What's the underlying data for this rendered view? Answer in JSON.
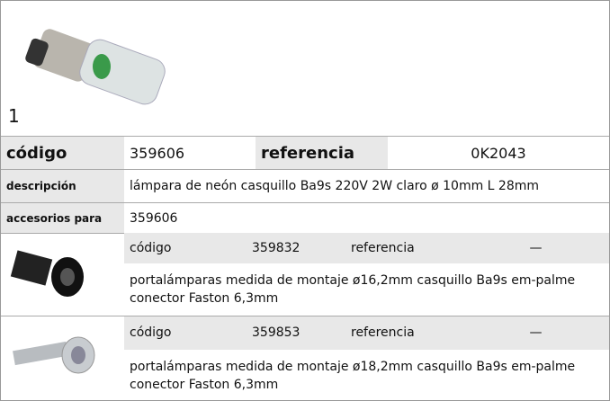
{
  "product": {
    "number": "1",
    "code_label": "código",
    "code": "359606",
    "ref_label": "referencia",
    "ref": "0K2043",
    "desc_label": "descripción",
    "description": "lámpara de neón  casquillo Ba9s 220V 2W claro ø 10mm L 28mm",
    "acc_label": "accesorios para",
    "acc_value": "359606"
  },
  "accessories": [
    {
      "code_label": "código",
      "code": "359832",
      "ref_label": "referencia",
      "ref": "—",
      "description": "portalámparas  medida de montaje ø16,2mm casquillo Ba9s em-palme conector Faston 6,3mm"
    },
    {
      "code_label": "código",
      "code": "359853",
      "ref_label": "referencia",
      "ref": "—",
      "description": "portalámparas  medida de montaje ø18,2mm casquillo Ba9s em-palme conector Faston 6,3mm"
    }
  ]
}
